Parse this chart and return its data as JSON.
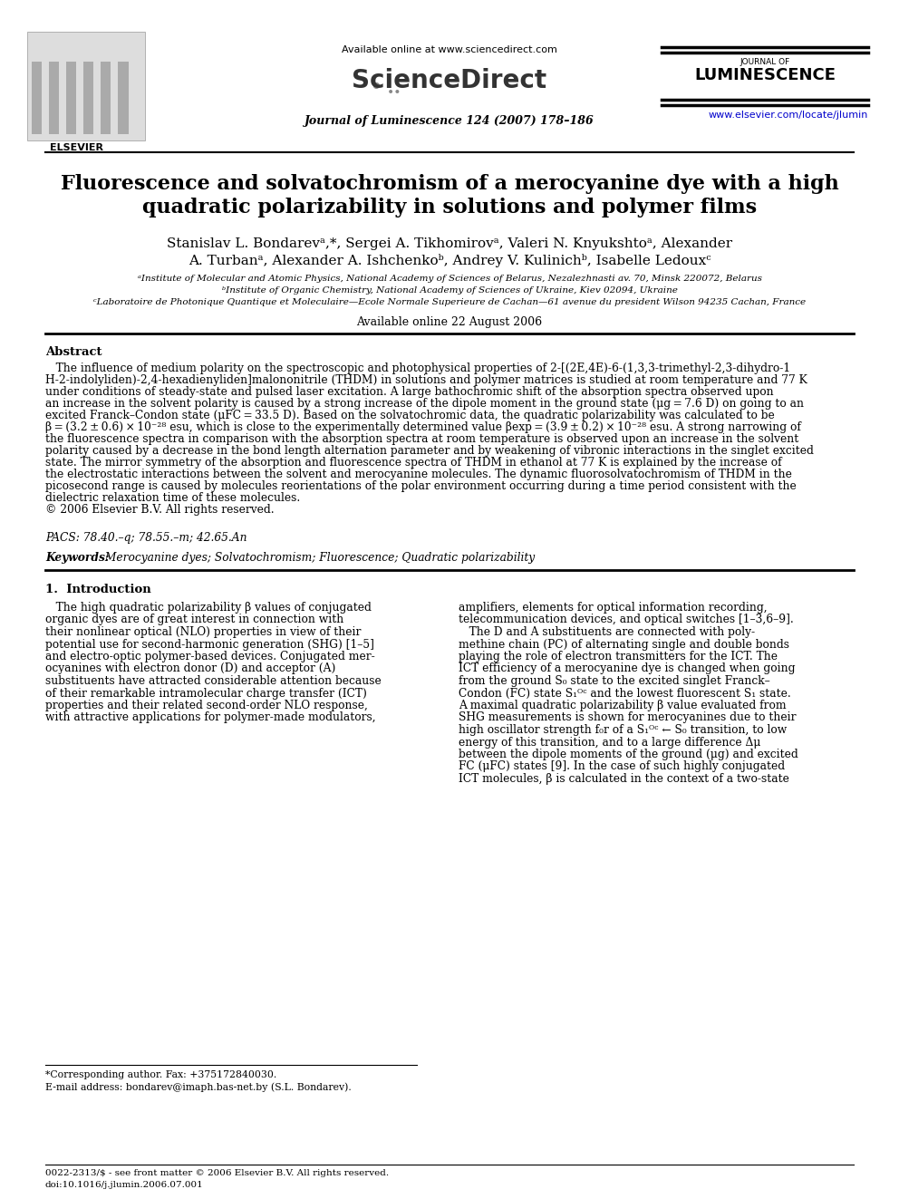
{
  "bg_color": "#ffffff",
  "available_online_text": "Available online at www.sciencedirect.com",
  "journal_info": "Journal of Luminescence 124 (2007) 178–186",
  "url": "www.elsevier.com/locate/jlumin",
  "title_line1": "Fluorescence and solvatochromism of a merocyanine dye with a high",
  "title_line2": "quadratic polarizability in solutions and polymer films",
  "author_line1": "Stanislav L. Bondarevᵃ,*, Sergei A. Tikhomirovᵃ, Valeri N. Knyukshtoᵃ, Alexander",
  "author_line2": "A. Turbanᵃ, Alexander A. Ishchenkoᵇ, Andrey V. Kulinichᵇ, Isabelle Ledouxᶜ",
  "aff1": "ᵃInstitute of Molecular and Atomic Physics, National Academy of Sciences of Belarus, Nezalezhnasti av. 70, Minsk 220072, Belarus",
  "aff2": "ᵇInstitute of Organic Chemistry, National Academy of Sciences of Ukraine, Kiev 02094, Ukraine",
  "aff3": "ᶜLaboratoire de Photonique Quantique et Moleculaire—Ecole Normale Superieure de Cachan—61 avenue du president Wilson 94235 Cachan, France",
  "available_date": "Available online 22 August 2006",
  "abstract_title": "Abstract",
  "abs_line1": "   The influence of medium polarity on the spectroscopic and photophysical properties of 2-[(2E,4E)-6-(1,3,3-trimethyl-2,3-dihydro-1",
  "abs_line2": "H-2-indolyliden)-2,4-hexadienyliden]malononitrile (THDM) in solutions and polymer matrices is studied at room temperature and 77 K",
  "abs_line3": "under conditions of steady-state and pulsed laser excitation. A large bathochromic shift of the absorption spectra observed upon",
  "abs_line4": "an increase in the solvent polarity is caused by a strong increase of the dipole moment in the ground state (μg = 7.6 D) on going to an",
  "abs_line5": "excited Franck–Condon state (μFC = 33.5 D). Based on the solvatochromic data, the quadratic polarizability was calculated to be",
  "abs_line6": "β = (3.2 ± 0.6) × 10⁻²⁸ esu, which is close to the experimentally determined value βexp = (3.9 ± 0.2) × 10⁻²⁸ esu. A strong narrowing of",
  "abs_line7": "the fluorescence spectra in comparison with the absorption spectra at room temperature is observed upon an increase in the solvent",
  "abs_line8": "polarity caused by a decrease in the bond length alternation parameter and by weakening of vibronic interactions in the singlet excited",
  "abs_line9": "state. The mirror symmetry of the absorption and fluorescence spectra of THDM in ethanol at 77 K is explained by the increase of",
  "abs_line10": "the electrostatic interactions between the solvent and merocyanine molecules. The dynamic fluorosolvatochromism of THDM in the",
  "abs_line11": "picosecond range is caused by molecules reorientations of the polar environment occurring during a time period consistent with the",
  "abs_line12": "dielectric relaxation time of these molecules.",
  "abs_line13": "© 2006 Elsevier B.V. All rights reserved.",
  "pacs": "PACS: 78.40.–q; 78.55.–m; 42.65.An",
  "keywords_bold": "Keywords:",
  "keywords_rest": " Merocyanine dyes; Solvatochromism; Fluorescence; Quadratic polarizability",
  "intro_title": "1.  Introduction",
  "c1_l1": "   The high quadratic polarizability β values of conjugated",
  "c1_l2": "organic dyes are of great interest in connection with",
  "c1_l3": "their nonlinear optical (NLO) properties in view of their",
  "c1_l4": "potential use for second-harmonic generation (SHG) [1–5]",
  "c1_l5": "and electro-optic polymer-based devices. Conjugated mer-",
  "c1_l6": "ocyanines with electron donor (D) and acceptor (A)",
  "c1_l7": "substituents have attracted considerable attention because",
  "c1_l8": "of their remarkable intramolecular charge transfer (ICT)",
  "c1_l9": "properties and their related second-order NLO response,",
  "c1_l10": "with attractive applications for polymer-made modulators,",
  "c2_l1": "amplifiers, elements for optical information recording,",
  "c2_l2": "telecommunication devices, and optical switches [1–3,6–9].",
  "c2_l3": "   The D and A substituents are connected with poly-",
  "c2_l4": "methine chain (PC) of alternating single and double bonds",
  "c2_l5": "playing the role of electron transmitters for the ICT. The",
  "c2_l6": "ICT efficiency of a merocyanine dye is changed when going",
  "c2_l7": "from the ground S₀ state to the excited singlet Franck–",
  "c2_l8": "Condon (FC) state S₁ᴼᶜ and the lowest fluorescent S₁ state.",
  "c2_l9": "A maximal quadratic polarizability β value evaluated from",
  "c2_l10": "SHG measurements is shown for merocyanines due to their",
  "c2_l11": "high oscillator strength f₀r of a S₁ᴼᶜ ← S₀ transition, to low",
  "c2_l12": "energy of this transition, and to a large difference Δμ",
  "c2_l13": "between the dipole moments of the ground (μg) and excited",
  "c2_l14": "FC (μFC) states [9]. In the case of such highly conjugated",
  "c2_l15": "ICT molecules, β is calculated in the context of a two-state",
  "footnote1": "*Corresponding author. Fax: +375172840030.",
  "footnote2": "E-mail address: bondarev@imaph.bas-net.by (S.L. Bondarev).",
  "footer1": "0022-2313/$ - see front matter © 2006 Elsevier B.V. All rights reserved.",
  "footer2": "doi:10.1016/j.jlumin.2006.07.001"
}
